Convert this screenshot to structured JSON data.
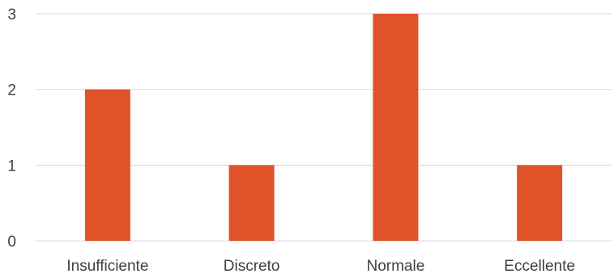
{
  "chart_data": {
    "type": "bar",
    "title": "",
    "xlabel": "",
    "ylabel": "",
    "categories": [
      "Insufficiente",
      "Discreto",
      "Normale",
      "Eccellente"
    ],
    "values": [
      2,
      1,
      3,
      1
    ],
    "ylim": [
      0,
      3
    ],
    "yticks": [
      "0",
      "1",
      "2",
      "3"
    ],
    "grid": true,
    "legend": "none",
    "bar_color": "#e0522a",
    "grid_color": "#d9d9d9",
    "label_color": "#404040"
  }
}
